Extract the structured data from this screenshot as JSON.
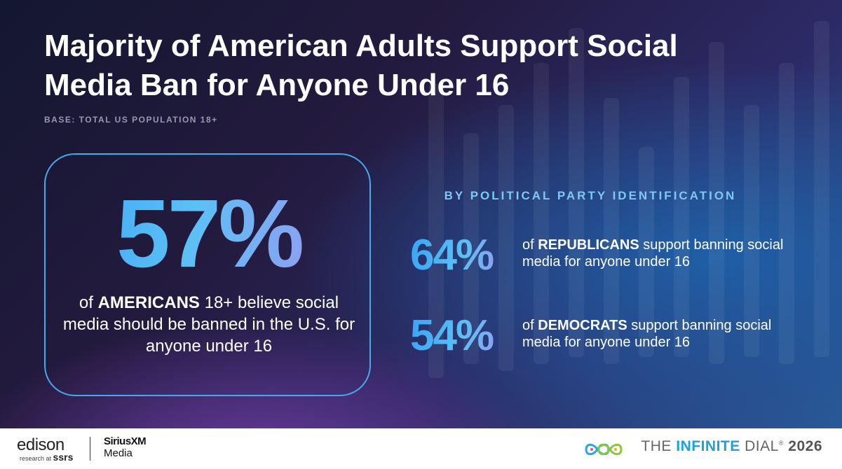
{
  "title": "Majority of American Adults Support Social Media Ban for Anyone Under 16",
  "base": "BASE: TOTAL US POPULATION 18+",
  "overall": {
    "pct": "57%",
    "text_pre": "of ",
    "text_bold": "AMERICANS",
    "text_post": " 18+ believe social media should be banned in the U.S. for anyone under 16"
  },
  "party": {
    "heading": "BY POLITICAL PARTY IDENTIFICATION",
    "rows": [
      {
        "pct": "64%",
        "pre": "of ",
        "bold": "REPUBLICANS",
        "post": " support banning social media for anyone under 16"
      },
      {
        "pct": "54%",
        "pre": "of ",
        "bold": "DEMOCRATS",
        "post": " support banning social media for anyone under 16"
      }
    ]
  },
  "footer": {
    "edison": "edison",
    "edison_sub_pre": "research at",
    "edison_sub_bold": "ssrs",
    "sxm_line1": "SiriusXM",
    "sxm_line2": "Media",
    "dial_the": "THE ",
    "dial_infinite": "INFINITE",
    "dial_rest": " DIAL",
    "dial_reg": "®",
    "dial_year": "2026"
  }
}
